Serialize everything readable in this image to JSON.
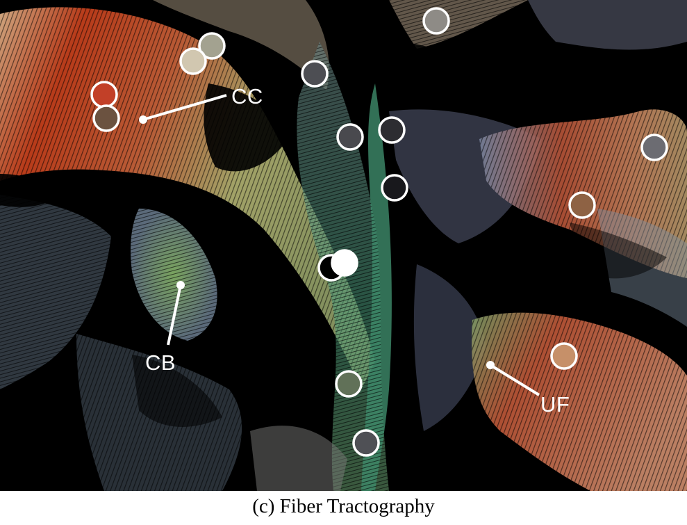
{
  "figure": {
    "labels": {
      "cc": "CC",
      "cb": "CB",
      "uf": "UF"
    },
    "caption": "(c)  Fiber Tractography"
  },
  "markers": [
    {
      "color": "#8e8b86"
    },
    {
      "color": "#a3a290"
    },
    {
      "color": "#d1c7b0"
    },
    {
      "color": "#4d4e53"
    },
    {
      "color": "#c24028"
    },
    {
      "color": "#6b5240"
    },
    {
      "color": "#49494e"
    },
    {
      "color": "#2d2d31"
    },
    {
      "color": "#18181c"
    },
    {
      "color": "#6c6c72"
    },
    {
      "color": "#8e6244"
    },
    {
      "color": "#000000"
    },
    {
      "color": "#ffffff"
    },
    {
      "color": "#c69069"
    },
    {
      "color": "#617158"
    },
    {
      "color": "#4f5055"
    }
  ]
}
